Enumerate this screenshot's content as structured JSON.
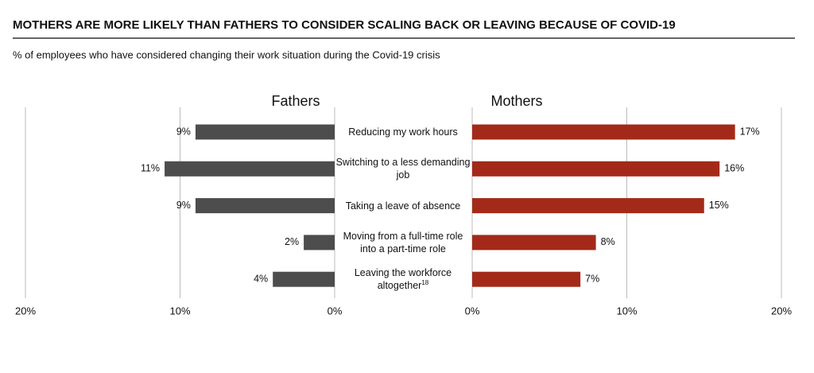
{
  "chart_data": {
    "type": "butterfly",
    "title": "MOTHERS ARE MORE LIKELY THAN FATHERS TO CONSIDER SCALING BACK OR LEAVING BECAUSE OF COVID-19",
    "subtitle": "% of employees who have considered changing their work situation during the Covid-19 crisis",
    "categories": [
      "Reducing my work hours",
      "Switching to a less demanding job",
      "Taking a leave of absence",
      "Moving from a full-time role into a part-time role",
      "Leaving the workforce altogether"
    ],
    "category_notes": [
      null,
      null,
      null,
      null,
      "18"
    ],
    "series": [
      {
        "name": "Fathers",
        "color": "#4d4d4d",
        "values": [
          9,
          11,
          9,
          2,
          4
        ],
        "value_labels": [
          "9%",
          "11%",
          "9%",
          "2%",
          "4%"
        ]
      },
      {
        "name": "Mothers",
        "color": "#a32a18",
        "values": [
          17,
          16,
          15,
          8,
          7
        ],
        "value_labels": [
          "17%",
          "16%",
          "15%",
          "8%",
          "7%"
        ]
      }
    ],
    "xlim": [
      0,
      20
    ],
    "xticks": [
      {
        "value": 0,
        "label": "0%"
      },
      {
        "value": 10,
        "label": "10%"
      },
      {
        "value": 20,
        "label": "20%"
      }
    ],
    "grid": true
  }
}
